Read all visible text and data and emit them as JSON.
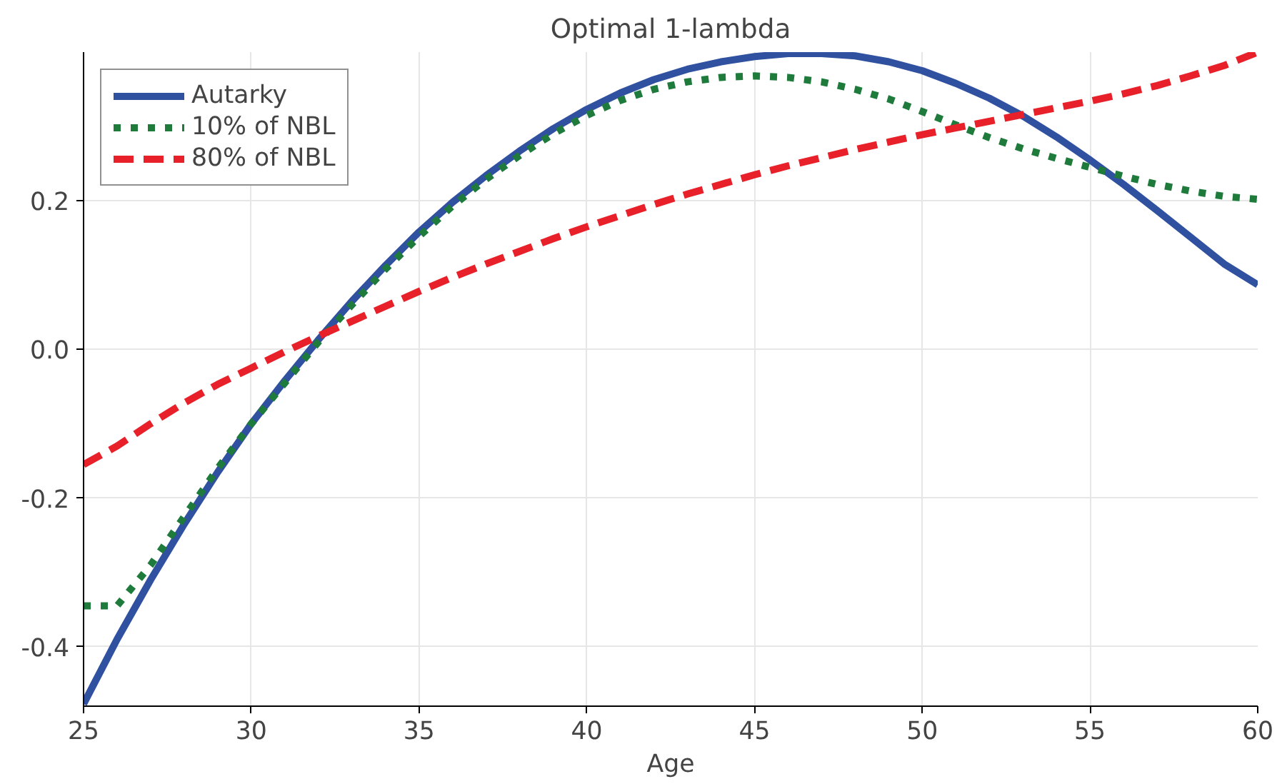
{
  "chart_data": {
    "type": "line",
    "title": "Optimal 1-lambda",
    "xlabel": "Age",
    "x": [
      25,
      26,
      27,
      28,
      29,
      30,
      31,
      32,
      33,
      34,
      35,
      36,
      37,
      38,
      39,
      40,
      41,
      42,
      43,
      44,
      45,
      46,
      47,
      48,
      49,
      50,
      51,
      52,
      53,
      54,
      55,
      56,
      57,
      58,
      59,
      60
    ],
    "xlim": [
      25,
      60
    ],
    "xticks": [
      25,
      30,
      35,
      40,
      45,
      50,
      55,
      60
    ],
    "ylim": [
      -0.48,
      0.4
    ],
    "yticks": [
      {
        "value": -0.4,
        "label": "-0.4"
      },
      {
        "value": -0.2,
        "label": "-0.2"
      },
      {
        "value": 0,
        "label": "0.0"
      },
      {
        "value": 0.2,
        "label": "0.2"
      }
    ],
    "grid": true,
    "legend": "top left",
    "marker": "none",
    "series": [
      {
        "name": "Autarky",
        "color": "#3050a0",
        "line_style": "solid",
        "values": [
          -0.477,
          -0.39,
          -0.31,
          -0.235,
          -0.165,
          -0.1,
          -0.042,
          0.013,
          0.065,
          0.113,
          0.158,
          0.198,
          0.234,
          0.267,
          0.297,
          0.323,
          0.345,
          0.363,
          0.377,
          0.387,
          0.394,
          0.398,
          0.398,
          0.395,
          0.387,
          0.375,
          0.358,
          0.338,
          0.314,
          0.286,
          0.255,
          0.222,
          0.187,
          0.151,
          0.115,
          0.087
        ]
      },
      {
        "name": "10% of NBL",
        "color": "#1e7b3c",
        "line_style": "dotted",
        "values": [
          -0.345,
          -0.345,
          -0.29,
          -0.225,
          -0.16,
          -0.1,
          -0.045,
          0.01,
          0.06,
          0.108,
          0.152,
          0.193,
          0.229,
          0.261,
          0.29,
          0.315,
          0.335,
          0.35,
          0.36,
          0.366,
          0.368,
          0.366,
          0.36,
          0.35,
          0.337,
          0.32,
          0.302,
          0.285,
          0.27,
          0.257,
          0.245,
          0.233,
          0.222,
          0.213,
          0.206,
          0.202
        ]
      },
      {
        "name": "80% of NBL",
        "color": "#e8202a",
        "line_style": "dashed",
        "values": [
          -0.155,
          -0.13,
          -0.1,
          -0.072,
          -0.047,
          -0.025,
          -0.003,
          0.018,
          0.038,
          0.058,
          0.078,
          0.097,
          0.115,
          0.132,
          0.149,
          0.165,
          0.18,
          0.195,
          0.209,
          0.222,
          0.235,
          0.247,
          0.258,
          0.269,
          0.279,
          0.289,
          0.298,
          0.307,
          0.316,
          0.325,
          0.334,
          0.344,
          0.355,
          0.368,
          0.382,
          0.4
        ]
      }
    ]
  }
}
